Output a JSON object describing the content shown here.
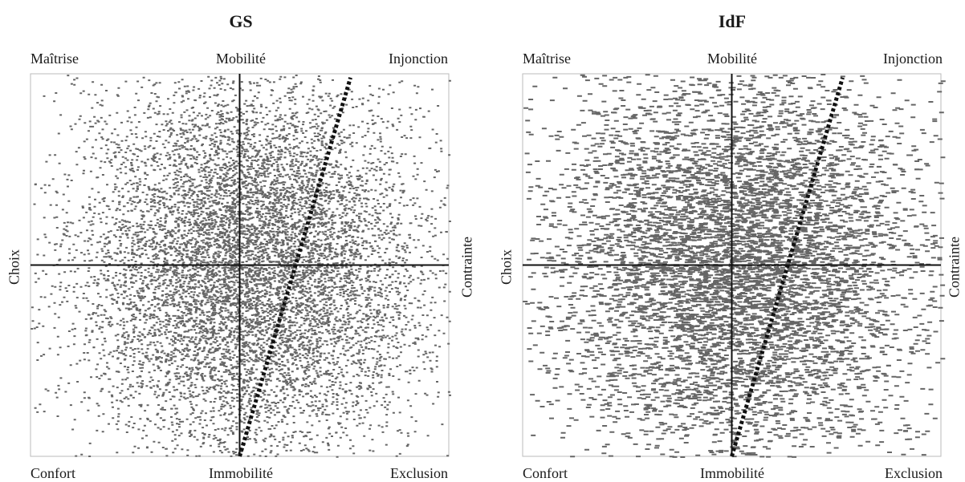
{
  "chart_data": [
    {
      "type": "scatter",
      "title": "GS",
      "labels": {
        "top_left": "Maîtrise",
        "top_center": "Mobilité",
        "top_right": "Injonction",
        "bottom_left": "Confort",
        "bottom_center": "Immobilité",
        "bottom_right": "Exclusion",
        "left": "Choix",
        "right": "Contrainte"
      },
      "xlim": [
        -1,
        1
      ],
      "ylim": [
        -1,
        1
      ],
      "grid": false,
      "point_color": "#666666",
      "point_count": 9000,
      "point_spread": [
        0.42,
        0.5
      ],
      "point_center": [
        0.05,
        0.0
      ],
      "divider": {
        "style": "dotted",
        "color": "#111111",
        "from": [
          0.0,
          -1.0
        ],
        "to": [
          0.53,
          0.98
        ]
      }
    },
    {
      "type": "scatter",
      "title": "IdF",
      "labels": {
        "top_left": "Maîtrise",
        "top_center": "Mobilité",
        "top_right": "Injonction",
        "bottom_left": "Confort",
        "bottom_center": "Immobilité",
        "bottom_right": "Exclusion",
        "left": "Choix",
        "right": "Contrainte"
      },
      "xlim": [
        -1,
        1
      ],
      "ylim": [
        -1,
        1
      ],
      "grid": false,
      "point_color": "#666666",
      "point_count": 6500,
      "point_spread": [
        0.45,
        0.52
      ],
      "point_center": [
        0.02,
        0.0
      ],
      "divider": {
        "style": "dotted",
        "color": "#111111",
        "from": [
          0.0,
          -1.0
        ],
        "to": [
          0.53,
          0.98
        ]
      }
    }
  ]
}
